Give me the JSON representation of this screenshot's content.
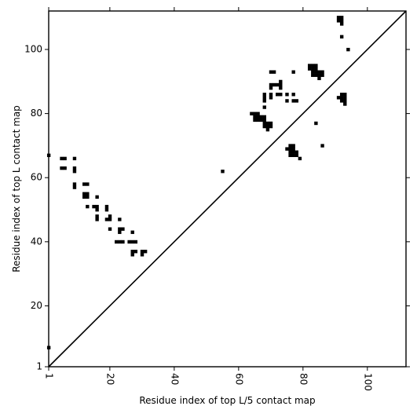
{
  "chart_data": {
    "type": "scatter",
    "xlabel": "Residue index of top L/5 contact map",
    "ylabel": "Residue index of top L contact map",
    "xlim": [
      1,
      112
    ],
    "ylim": [
      1,
      112
    ],
    "x_ticks": [
      1,
      20,
      40,
      60,
      80,
      100
    ],
    "y_ticks": [
      1,
      20,
      40,
      60,
      80,
      100
    ],
    "x_tick_labels": [
      "1",
      "20",
      "40",
      "60",
      "80",
      "100"
    ],
    "y_tick_labels": [
      "1",
      "20",
      "40",
      "60",
      "80",
      "100"
    ],
    "x_tick_rotation": "vertical",
    "diagonal": true,
    "grid": false,
    "marker": "filled-square",
    "marker_color": "#000000",
    "series": [
      {
        "points": [
          [
            1,
            67
          ],
          [
            1,
            7
          ],
          [
            5,
            66
          ],
          [
            6,
            66
          ],
          [
            5,
            63
          ],
          [
            6,
            63
          ],
          [
            9,
            66
          ],
          [
            9,
            63
          ],
          [
            9,
            62
          ],
          [
            9,
            58
          ],
          [
            9,
            57
          ],
          [
            12,
            58
          ],
          [
            13,
            58
          ],
          [
            12,
            55
          ],
          [
            13,
            55
          ],
          [
            12,
            54
          ],
          [
            13,
            54
          ],
          [
            13,
            51
          ],
          [
            15,
            51
          ],
          [
            16,
            51
          ],
          [
            16,
            50
          ],
          [
            16,
            48
          ],
          [
            16,
            47
          ],
          [
            16,
            54
          ],
          [
            19,
            51
          ],
          [
            19,
            50
          ],
          [
            19,
            47
          ],
          [
            20,
            47
          ],
          [
            20,
            48
          ],
          [
            20,
            44
          ],
          [
            22,
            40
          ],
          [
            23,
            40
          ],
          [
            24,
            40
          ],
          [
            23,
            43
          ],
          [
            23,
            44
          ],
          [
            24,
            44
          ],
          [
            23,
            47
          ],
          [
            26,
            40
          ],
          [
            27,
            40
          ],
          [
            28,
            40
          ],
          [
            27,
            43
          ],
          [
            27,
            37
          ],
          [
            28,
            37
          ],
          [
            27,
            36
          ],
          [
            30,
            37
          ],
          [
            31,
            37
          ],
          [
            30,
            36
          ],
          [
            55,
            62
          ],
          [
            64,
            80
          ],
          [
            65,
            80
          ],
          [
            66,
            80
          ],
          [
            65,
            79
          ],
          [
            66,
            79
          ],
          [
            67,
            79
          ],
          [
            68,
            79
          ],
          [
            65,
            78
          ],
          [
            66,
            78
          ],
          [
            67,
            78
          ],
          [
            68,
            78
          ],
          [
            68,
            77
          ],
          [
            69,
            77
          ],
          [
            70,
            77
          ],
          [
            68,
            76
          ],
          [
            69,
            76
          ],
          [
            70,
            76
          ],
          [
            69,
            75
          ],
          [
            68,
            86
          ],
          [
            68,
            85
          ],
          [
            68,
            84
          ],
          [
            68,
            82
          ],
          [
            70,
            93
          ],
          [
            71,
            93
          ],
          [
            70,
            89
          ],
          [
            71,
            89
          ],
          [
            72,
            89
          ],
          [
            73,
            89
          ],
          [
            70,
            88
          ],
          [
            73,
            90
          ],
          [
            73,
            88
          ],
          [
            70,
            86
          ],
          [
            70,
            85
          ],
          [
            72,
            86
          ],
          [
            73,
            86
          ],
          [
            75,
            86
          ],
          [
            75,
            84
          ],
          [
            77,
            86
          ],
          [
            77,
            84
          ],
          [
            78,
            84
          ],
          [
            77,
            93
          ],
          [
            75,
            69
          ],
          [
            76,
            69
          ],
          [
            77,
            69
          ],
          [
            76,
            70
          ],
          [
            77,
            70
          ],
          [
            76,
            68
          ],
          [
            77,
            68
          ],
          [
            78,
            68
          ],
          [
            76,
            67
          ],
          [
            77,
            67
          ],
          [
            78,
            67
          ],
          [
            79,
            66
          ],
          [
            82,
            95
          ],
          [
            83,
            95
          ],
          [
            84,
            95
          ],
          [
            82,
            94
          ],
          [
            83,
            94
          ],
          [
            84,
            94
          ],
          [
            83,
            93
          ],
          [
            84,
            93
          ],
          [
            85,
            93
          ],
          [
            86,
            93
          ],
          [
            83,
            92
          ],
          [
            84,
            92
          ],
          [
            85,
            92
          ],
          [
            86,
            92
          ],
          [
            85,
            91
          ],
          [
            84,
            77
          ],
          [
            86,
            70
          ],
          [
            91,
            110
          ],
          [
            92,
            110
          ],
          [
            91,
            109
          ],
          [
            92,
            109
          ],
          [
            92,
            108
          ],
          [
            92,
            104
          ],
          [
            94,
            100
          ],
          [
            91,
            85
          ],
          [
            92,
            86
          ],
          [
            93,
            86
          ],
          [
            92,
            85
          ],
          [
            93,
            85
          ],
          [
            92,
            84
          ],
          [
            93,
            84
          ],
          [
            93,
            83
          ]
        ]
      }
    ]
  }
}
